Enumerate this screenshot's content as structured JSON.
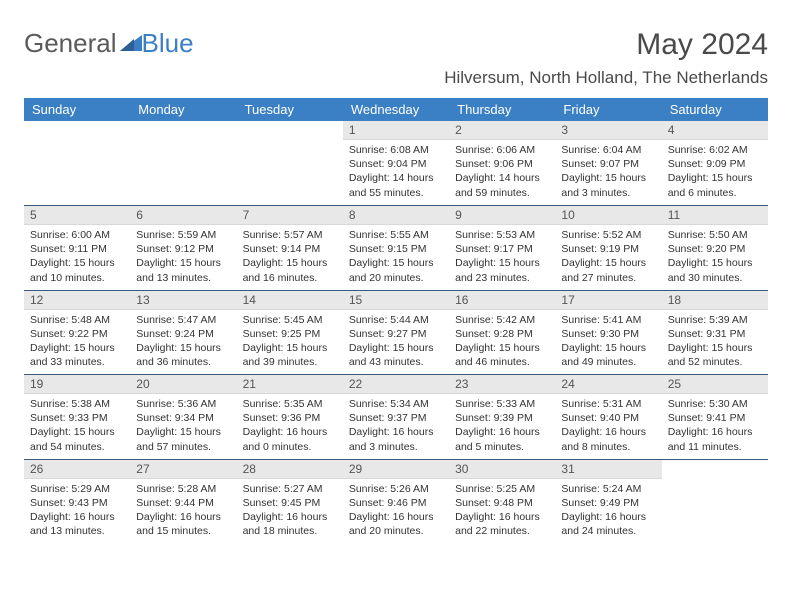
{
  "logo": {
    "text_gray": "General",
    "text_blue": "Blue"
  },
  "title": "May 2024",
  "location": "Hilversum, North Holland, The Netherlands",
  "colors": {
    "header_bg": "#3b7fc4",
    "header_text": "#ffffff",
    "daynum_bg": "#e8e8e8",
    "daynum_text": "#555555",
    "body_text": "#333333",
    "row_border": "#3b5a7a",
    "page_bg": "#ffffff",
    "logo_gray": "#5a5a5a",
    "logo_blue": "#3b7fc4"
  },
  "day_headers": [
    "Sunday",
    "Monday",
    "Tuesday",
    "Wednesday",
    "Thursday",
    "Friday",
    "Saturday"
  ],
  "weeks": [
    [
      null,
      null,
      null,
      {
        "n": "1",
        "sr": "Sunrise: 6:08 AM",
        "ss": "Sunset: 9:04 PM",
        "dl": "Daylight: 14 hours and 55 minutes."
      },
      {
        "n": "2",
        "sr": "Sunrise: 6:06 AM",
        "ss": "Sunset: 9:06 PM",
        "dl": "Daylight: 14 hours and 59 minutes."
      },
      {
        "n": "3",
        "sr": "Sunrise: 6:04 AM",
        "ss": "Sunset: 9:07 PM",
        "dl": "Daylight: 15 hours and 3 minutes."
      },
      {
        "n": "4",
        "sr": "Sunrise: 6:02 AM",
        "ss": "Sunset: 9:09 PM",
        "dl": "Daylight: 15 hours and 6 minutes."
      }
    ],
    [
      {
        "n": "5",
        "sr": "Sunrise: 6:00 AM",
        "ss": "Sunset: 9:11 PM",
        "dl": "Daylight: 15 hours and 10 minutes."
      },
      {
        "n": "6",
        "sr": "Sunrise: 5:59 AM",
        "ss": "Sunset: 9:12 PM",
        "dl": "Daylight: 15 hours and 13 minutes."
      },
      {
        "n": "7",
        "sr": "Sunrise: 5:57 AM",
        "ss": "Sunset: 9:14 PM",
        "dl": "Daylight: 15 hours and 16 minutes."
      },
      {
        "n": "8",
        "sr": "Sunrise: 5:55 AM",
        "ss": "Sunset: 9:15 PM",
        "dl": "Daylight: 15 hours and 20 minutes."
      },
      {
        "n": "9",
        "sr": "Sunrise: 5:53 AM",
        "ss": "Sunset: 9:17 PM",
        "dl": "Daylight: 15 hours and 23 minutes."
      },
      {
        "n": "10",
        "sr": "Sunrise: 5:52 AM",
        "ss": "Sunset: 9:19 PM",
        "dl": "Daylight: 15 hours and 27 minutes."
      },
      {
        "n": "11",
        "sr": "Sunrise: 5:50 AM",
        "ss": "Sunset: 9:20 PM",
        "dl": "Daylight: 15 hours and 30 minutes."
      }
    ],
    [
      {
        "n": "12",
        "sr": "Sunrise: 5:48 AM",
        "ss": "Sunset: 9:22 PM",
        "dl": "Daylight: 15 hours and 33 minutes."
      },
      {
        "n": "13",
        "sr": "Sunrise: 5:47 AM",
        "ss": "Sunset: 9:24 PM",
        "dl": "Daylight: 15 hours and 36 minutes."
      },
      {
        "n": "14",
        "sr": "Sunrise: 5:45 AM",
        "ss": "Sunset: 9:25 PM",
        "dl": "Daylight: 15 hours and 39 minutes."
      },
      {
        "n": "15",
        "sr": "Sunrise: 5:44 AM",
        "ss": "Sunset: 9:27 PM",
        "dl": "Daylight: 15 hours and 43 minutes."
      },
      {
        "n": "16",
        "sr": "Sunrise: 5:42 AM",
        "ss": "Sunset: 9:28 PM",
        "dl": "Daylight: 15 hours and 46 minutes."
      },
      {
        "n": "17",
        "sr": "Sunrise: 5:41 AM",
        "ss": "Sunset: 9:30 PM",
        "dl": "Daylight: 15 hours and 49 minutes."
      },
      {
        "n": "18",
        "sr": "Sunrise: 5:39 AM",
        "ss": "Sunset: 9:31 PM",
        "dl": "Daylight: 15 hours and 52 minutes."
      }
    ],
    [
      {
        "n": "19",
        "sr": "Sunrise: 5:38 AM",
        "ss": "Sunset: 9:33 PM",
        "dl": "Daylight: 15 hours and 54 minutes."
      },
      {
        "n": "20",
        "sr": "Sunrise: 5:36 AM",
        "ss": "Sunset: 9:34 PM",
        "dl": "Daylight: 15 hours and 57 minutes."
      },
      {
        "n": "21",
        "sr": "Sunrise: 5:35 AM",
        "ss": "Sunset: 9:36 PM",
        "dl": "Daylight: 16 hours and 0 minutes."
      },
      {
        "n": "22",
        "sr": "Sunrise: 5:34 AM",
        "ss": "Sunset: 9:37 PM",
        "dl": "Daylight: 16 hours and 3 minutes."
      },
      {
        "n": "23",
        "sr": "Sunrise: 5:33 AM",
        "ss": "Sunset: 9:39 PM",
        "dl": "Daylight: 16 hours and 5 minutes."
      },
      {
        "n": "24",
        "sr": "Sunrise: 5:31 AM",
        "ss": "Sunset: 9:40 PM",
        "dl": "Daylight: 16 hours and 8 minutes."
      },
      {
        "n": "25",
        "sr": "Sunrise: 5:30 AM",
        "ss": "Sunset: 9:41 PM",
        "dl": "Daylight: 16 hours and 11 minutes."
      }
    ],
    [
      {
        "n": "26",
        "sr": "Sunrise: 5:29 AM",
        "ss": "Sunset: 9:43 PM",
        "dl": "Daylight: 16 hours and 13 minutes."
      },
      {
        "n": "27",
        "sr": "Sunrise: 5:28 AM",
        "ss": "Sunset: 9:44 PM",
        "dl": "Daylight: 16 hours and 15 minutes."
      },
      {
        "n": "28",
        "sr": "Sunrise: 5:27 AM",
        "ss": "Sunset: 9:45 PM",
        "dl": "Daylight: 16 hours and 18 minutes."
      },
      {
        "n": "29",
        "sr": "Sunrise: 5:26 AM",
        "ss": "Sunset: 9:46 PM",
        "dl": "Daylight: 16 hours and 20 minutes."
      },
      {
        "n": "30",
        "sr": "Sunrise: 5:25 AM",
        "ss": "Sunset: 9:48 PM",
        "dl": "Daylight: 16 hours and 22 minutes."
      },
      {
        "n": "31",
        "sr": "Sunrise: 5:24 AM",
        "ss": "Sunset: 9:49 PM",
        "dl": "Daylight: 16 hours and 24 minutes."
      },
      null
    ]
  ]
}
